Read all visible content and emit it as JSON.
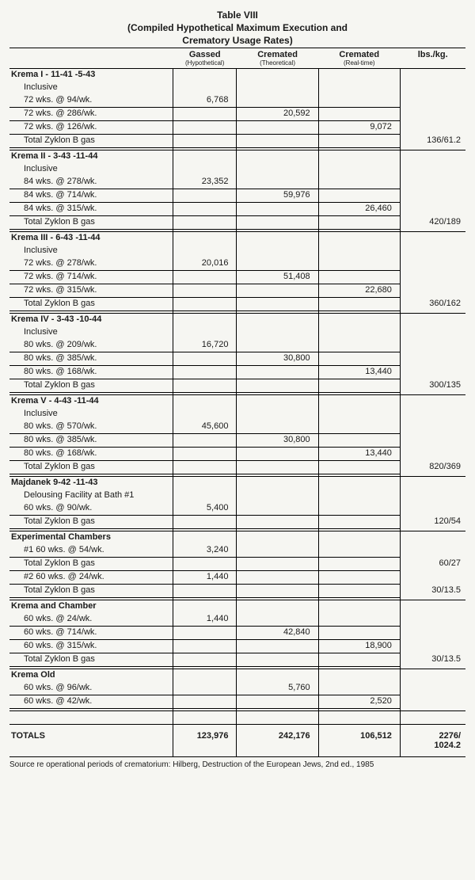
{
  "title_line1": "Table VIII",
  "title_line2": "(Compiled Hypothetical Maximum Execution and",
  "title_line3": "Crematory Usage Rates)",
  "headers": {
    "gassed": "Gassed",
    "gassed_sub": "(Hypothetical)",
    "crem_t": "Cremated",
    "crem_t_sub": "(Theoretical)",
    "crem_r": "Cremated",
    "crem_r_sub": "(Real-time)",
    "lbs": "lbs./kg."
  },
  "blocks": [
    {
      "section": "Krema I - 11-41 -5-43",
      "rows": [
        {
          "desc": "Inclusive"
        },
        {
          "desc": "72 wks. @ 94/wk.",
          "gassed": "6,768",
          "under": true
        },
        {
          "desc": "72 wks. @ 286/wk.",
          "crem_t": "20,592",
          "under": true
        },
        {
          "desc": "72 wks. @ 126/wk.",
          "crem_r": "9,072",
          "under": true
        },
        {
          "desc": "Total Zyklon B gas",
          "lbs": "136/61.2",
          "under": true
        }
      ]
    },
    {
      "section": "Krema II - 3-43 -11-44",
      "rows": [
        {
          "desc": "Inclusive"
        },
        {
          "desc": "84 wks. @ 278/wk.",
          "gassed": "23,352",
          "under": true
        },
        {
          "desc": "84 wks. @ 714/wk.",
          "crem_t": "59,976",
          "under": true
        },
        {
          "desc": "84 wks. @ 315/wk.",
          "crem_r": "26,460",
          "under": true
        },
        {
          "desc": "Total Zyklon B gas",
          "lbs": "420/189",
          "under": true
        }
      ]
    },
    {
      "section": "Krema III - 6-43 -11-44",
      "rows": [
        {
          "desc": "Inclusive"
        },
        {
          "desc": "72 wks. @ 278/wk.",
          "gassed": "20,016",
          "under": true
        },
        {
          "desc": "72 wks. @ 714/wk.",
          "crem_t": "51,408",
          "under": true
        },
        {
          "desc": "72 wks. @ 315/wk.",
          "crem_r": "22,680",
          "under": true
        },
        {
          "desc": "Total Zyklon B gas",
          "lbs": "360/162",
          "under": true
        }
      ]
    },
    {
      "section": "Krema IV - 3-43 -10-44",
      "rows": [
        {
          "desc": "Inclusive"
        },
        {
          "desc": "80 wks. @ 209/wk.",
          "gassed": "16,720",
          "under": true
        },
        {
          "desc": "80 wks. @ 385/wk.",
          "crem_t": "30,800",
          "under": true
        },
        {
          "desc": "80 wks. @ 168/wk.",
          "crem_r": "13,440",
          "under": true
        },
        {
          "desc": "Total Zyklon B gas",
          "lbs": "300/135",
          "under": true
        }
      ]
    },
    {
      "section": "Krema V - 4-43 -11-44",
      "rows": [
        {
          "desc": "Inclusive"
        },
        {
          "desc": "80 wks. @ 570/wk.",
          "gassed": "45,600",
          "under": true
        },
        {
          "desc": "80 wks. @ 385/wk.",
          "crem_t": "30,800",
          "under": true
        },
        {
          "desc": "80 wks. @ 168/wk.",
          "crem_r": "13,440",
          "under": true
        },
        {
          "desc": "Total Zyklon B gas",
          "lbs": "820/369",
          "under": true
        }
      ]
    },
    {
      "section": "Majdanek 9-42 -11-43",
      "rows": [
        {
          "desc": "Delousing Facility at Bath #1"
        },
        {
          "desc": "60 wks. @ 90/wk.",
          "gassed": "5,400",
          "under": true
        },
        {
          "desc": "Total Zyklon B gas",
          "lbs": "120/54",
          "under": true
        }
      ]
    },
    {
      "section": "Experimental Chambers",
      "rows": [
        {
          "desc": "#1 60 wks. @ 54/wk.",
          "gassed": "3,240",
          "under": true
        },
        {
          "desc": "Total Zyklon B gas",
          "lbs": "60/27",
          "under": true
        },
        {
          "desc": "#2 60 wks. @ 24/wk.",
          "gassed": "1,440",
          "under": true
        },
        {
          "desc": "Total Zyklon B gas",
          "lbs": "30/13.5",
          "under": true
        }
      ]
    },
    {
      "section": "Krema and Chamber",
      "rows": [
        {
          "desc": "60 wks. @ 24/wk.",
          "gassed": "1,440",
          "under": true
        },
        {
          "desc": "60 wks. @ 714/wk.",
          "crem_t": "42,840",
          "under": true
        },
        {
          "desc": "60 wks. @ 315/wk.",
          "crem_r": "18,900",
          "under": true
        },
        {
          "desc": "Total Zyklon B gas",
          "lbs": "30/13.5",
          "under": true
        }
      ]
    },
    {
      "section": "Krema Old",
      "rows": [
        {
          "desc": "60 wks. @ 96/wk.",
          "crem_t": "5,760",
          "under": true
        },
        {
          "desc": "60 wks. @ 42/wk.",
          "crem_r": "2,520",
          "under": true
        }
      ]
    }
  ],
  "totals": {
    "label": "TOTALS",
    "gassed": "123,976",
    "crem_t": "242,176",
    "crem_r": "106,512",
    "lbs": "2276/\n1024.2"
  },
  "source": "Source re operational periods of crematorium: Hilberg, Destruction of the European Jews, 2nd ed., 1985"
}
